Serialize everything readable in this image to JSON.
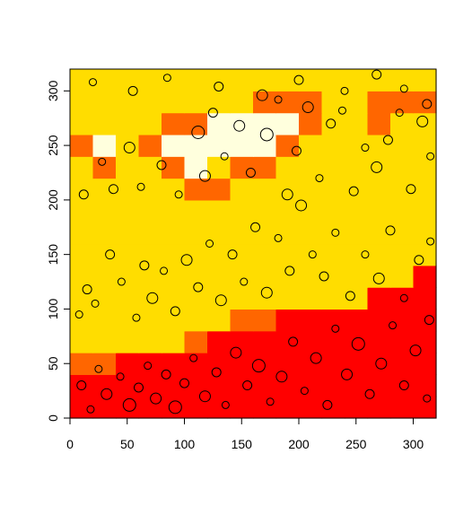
{
  "chart_data": {
    "type": "heatmap",
    "title": "",
    "xlabel": "",
    "ylabel": "",
    "xlim": [
      0,
      320
    ],
    "ylim": [
      0,
      320
    ],
    "xticks": [
      0,
      50,
      100,
      150,
      200,
      250,
      300
    ],
    "yticks": [
      0,
      50,
      100,
      150,
      200,
      250,
      300
    ],
    "cell_size": 20,
    "palette": {
      "1": "#FF0000",
      "2": "#FF6600",
      "3": "#FFDD00",
      "4": "#FFFFDD"
    },
    "grid_rows_bottom_to_top": [
      [
        1,
        1,
        1,
        1,
        1,
        1,
        1,
        1,
        1,
        1,
        1,
        1,
        1,
        1,
        1,
        1
      ],
      [
        1,
        1,
        1,
        1,
        1,
        1,
        1,
        1,
        1,
        1,
        1,
        1,
        1,
        1,
        1,
        1
      ],
      [
        2,
        2,
        1,
        1,
        1,
        1,
        1,
        1,
        1,
        1,
        1,
        1,
        1,
        1,
        1,
        1
      ],
      [
        3,
        3,
        3,
        3,
        3,
        2,
        1,
        1,
        1,
        1,
        1,
        1,
        1,
        1,
        1,
        1
      ],
      [
        3,
        3,
        3,
        3,
        3,
        3,
        3,
        2,
        2,
        1,
        1,
        1,
        1,
        1,
        1,
        1
      ],
      [
        3,
        3,
        3,
        3,
        3,
        3,
        3,
        3,
        3,
        3,
        3,
        3,
        3,
        1,
        1,
        1
      ],
      [
        3,
        3,
        3,
        3,
        3,
        3,
        3,
        3,
        3,
        3,
        3,
        3,
        3,
        3,
        3,
        1
      ],
      [
        3,
        3,
        3,
        3,
        3,
        3,
        3,
        3,
        3,
        3,
        3,
        3,
        3,
        3,
        3,
        3
      ],
      [
        3,
        3,
        3,
        3,
        3,
        3,
        3,
        3,
        3,
        3,
        3,
        3,
        3,
        3,
        3,
        3
      ],
      [
        3,
        3,
        3,
        3,
        3,
        3,
        3,
        3,
        3,
        3,
        3,
        3,
        3,
        3,
        3,
        3
      ],
      [
        3,
        3,
        3,
        3,
        3,
        2,
        2,
        3,
        3,
        3,
        3,
        3,
        3,
        3,
        3,
        3
      ],
      [
        3,
        2,
        3,
        3,
        2,
        4,
        3,
        2,
        2,
        3,
        3,
        3,
        3,
        3,
        3,
        3
      ],
      [
        2,
        4,
        3,
        2,
        4,
        4,
        4,
        4,
        4,
        2,
        3,
        3,
        3,
        3,
        3,
        3
      ],
      [
        3,
        3,
        3,
        3,
        2,
        2,
        4,
        4,
        4,
        4,
        2,
        3,
        3,
        2,
        3,
        3
      ],
      [
        3,
        3,
        3,
        3,
        3,
        3,
        3,
        3,
        2,
        2,
        2,
        3,
        3,
        2,
        2,
        2
      ],
      [
        3,
        3,
        3,
        3,
        3,
        3,
        3,
        3,
        3,
        3,
        3,
        3,
        3,
        3,
        3,
        3
      ]
    ],
    "points": [
      {
        "x": 10,
        "y": 30,
        "r": 5
      },
      {
        "x": 18,
        "y": 8,
        "r": 4
      },
      {
        "x": 25,
        "y": 45,
        "r": 4
      },
      {
        "x": 32,
        "y": 22,
        "r": 6
      },
      {
        "x": 44,
        "y": 38,
        "r": 4
      },
      {
        "x": 52,
        "y": 12,
        "r": 7
      },
      {
        "x": 60,
        "y": 28,
        "r": 5
      },
      {
        "x": 68,
        "y": 48,
        "r": 4
      },
      {
        "x": 75,
        "y": 18,
        "r": 6
      },
      {
        "x": 84,
        "y": 40,
        "r": 5
      },
      {
        "x": 92,
        "y": 10,
        "r": 7
      },
      {
        "x": 100,
        "y": 32,
        "r": 5
      },
      {
        "x": 108,
        "y": 55,
        "r": 4
      },
      {
        "x": 118,
        "y": 20,
        "r": 6
      },
      {
        "x": 128,
        "y": 42,
        "r": 5
      },
      {
        "x": 136,
        "y": 12,
        "r": 4
      },
      {
        "x": 145,
        "y": 60,
        "r": 6
      },
      {
        "x": 155,
        "y": 30,
        "r": 5
      },
      {
        "x": 165,
        "y": 48,
        "r": 7
      },
      {
        "x": 175,
        "y": 15,
        "r": 4
      },
      {
        "x": 185,
        "y": 38,
        "r": 6
      },
      {
        "x": 195,
        "y": 70,
        "r": 5
      },
      {
        "x": 205,
        "y": 25,
        "r": 4
      },
      {
        "x": 215,
        "y": 55,
        "r": 6
      },
      {
        "x": 225,
        "y": 12,
        "r": 5
      },
      {
        "x": 232,
        "y": 82,
        "r": 4
      },
      {
        "x": 242,
        "y": 40,
        "r": 6
      },
      {
        "x": 252,
        "y": 68,
        "r": 7
      },
      {
        "x": 262,
        "y": 22,
        "r": 5
      },
      {
        "x": 272,
        "y": 50,
        "r": 6
      },
      {
        "x": 282,
        "y": 85,
        "r": 4
      },
      {
        "x": 292,
        "y": 30,
        "r": 5
      },
      {
        "x": 302,
        "y": 62,
        "r": 6
      },
      {
        "x": 312,
        "y": 18,
        "r": 4
      },
      {
        "x": 314,
        "y": 90,
        "r": 5
      },
      {
        "x": 8,
        "y": 95,
        "r": 4
      },
      {
        "x": 15,
        "y": 118,
        "r": 5
      },
      {
        "x": 22,
        "y": 105,
        "r": 4
      },
      {
        "x": 35,
        "y": 150,
        "r": 5
      },
      {
        "x": 45,
        "y": 125,
        "r": 4
      },
      {
        "x": 58,
        "y": 92,
        "r": 4
      },
      {
        "x": 65,
        "y": 140,
        "r": 5
      },
      {
        "x": 72,
        "y": 110,
        "r": 6
      },
      {
        "x": 82,
        "y": 135,
        "r": 4
      },
      {
        "x": 92,
        "y": 98,
        "r": 5
      },
      {
        "x": 102,
        "y": 145,
        "r": 6
      },
      {
        "x": 112,
        "y": 120,
        "r": 5
      },
      {
        "x": 122,
        "y": 160,
        "r": 4
      },
      {
        "x": 132,
        "y": 108,
        "r": 6
      },
      {
        "x": 142,
        "y": 150,
        "r": 5
      },
      {
        "x": 152,
        "y": 125,
        "r": 4
      },
      {
        "x": 162,
        "y": 175,
        "r": 5
      },
      {
        "x": 172,
        "y": 115,
        "r": 6
      },
      {
        "x": 182,
        "y": 165,
        "r": 4
      },
      {
        "x": 192,
        "y": 135,
        "r": 5
      },
      {
        "x": 202,
        "y": 195,
        "r": 6
      },
      {
        "x": 212,
        "y": 150,
        "r": 4
      },
      {
        "x": 222,
        "y": 130,
        "r": 5
      },
      {
        "x": 232,
        "y": 170,
        "r": 4
      },
      {
        "x": 245,
        "y": 112,
        "r": 5
      },
      {
        "x": 258,
        "y": 150,
        "r": 4
      },
      {
        "x": 270,
        "y": 128,
        "r": 6
      },
      {
        "x": 280,
        "y": 172,
        "r": 5
      },
      {
        "x": 292,
        "y": 110,
        "r": 4
      },
      {
        "x": 305,
        "y": 145,
        "r": 5
      },
      {
        "x": 315,
        "y": 162,
        "r": 4
      },
      {
        "x": 12,
        "y": 205,
        "r": 5
      },
      {
        "x": 28,
        "y": 235,
        "r": 4
      },
      {
        "x": 38,
        "y": 210,
        "r": 5
      },
      {
        "x": 52,
        "y": 248,
        "r": 6
      },
      {
        "x": 62,
        "y": 212,
        "r": 4
      },
      {
        "x": 80,
        "y": 232,
        "r": 5
      },
      {
        "x": 95,
        "y": 205,
        "r": 4
      },
      {
        "x": 112,
        "y": 262,
        "r": 7
      },
      {
        "x": 118,
        "y": 222,
        "r": 6
      },
      {
        "x": 125,
        "y": 280,
        "r": 5
      },
      {
        "x": 135,
        "y": 240,
        "r": 4
      },
      {
        "x": 148,
        "y": 268,
        "r": 6
      },
      {
        "x": 158,
        "y": 225,
        "r": 5
      },
      {
        "x": 172,
        "y": 260,
        "r": 7
      },
      {
        "x": 182,
        "y": 292,
        "r": 4
      },
      {
        "x": 190,
        "y": 205,
        "r": 6
      },
      {
        "x": 198,
        "y": 245,
        "r": 5
      },
      {
        "x": 208,
        "y": 285,
        "r": 6
      },
      {
        "x": 218,
        "y": 220,
        "r": 4
      },
      {
        "x": 228,
        "y": 270,
        "r": 5
      },
      {
        "x": 238,
        "y": 282,
        "r": 4
      },
      {
        "x": 248,
        "y": 208,
        "r": 5
      },
      {
        "x": 258,
        "y": 248,
        "r": 4
      },
      {
        "x": 268,
        "y": 230,
        "r": 6
      },
      {
        "x": 278,
        "y": 255,
        "r": 5
      },
      {
        "x": 288,
        "y": 280,
        "r": 4
      },
      {
        "x": 298,
        "y": 210,
        "r": 5
      },
      {
        "x": 308,
        "y": 272,
        "r": 6
      },
      {
        "x": 315,
        "y": 240,
        "r": 4
      },
      {
        "x": 20,
        "y": 308,
        "r": 4
      },
      {
        "x": 55,
        "y": 300,
        "r": 5
      },
      {
        "x": 85,
        "y": 312,
        "r": 4
      },
      {
        "x": 130,
        "y": 304,
        "r": 5
      },
      {
        "x": 168,
        "y": 296,
        "r": 6
      },
      {
        "x": 200,
        "y": 310,
        "r": 5
      },
      {
        "x": 240,
        "y": 300,
        "r": 4
      },
      {
        "x": 268,
        "y": 315,
        "r": 5
      },
      {
        "x": 292,
        "y": 302,
        "r": 4
      },
      {
        "x": 312,
        "y": 288,
        "r": 5
      }
    ]
  }
}
